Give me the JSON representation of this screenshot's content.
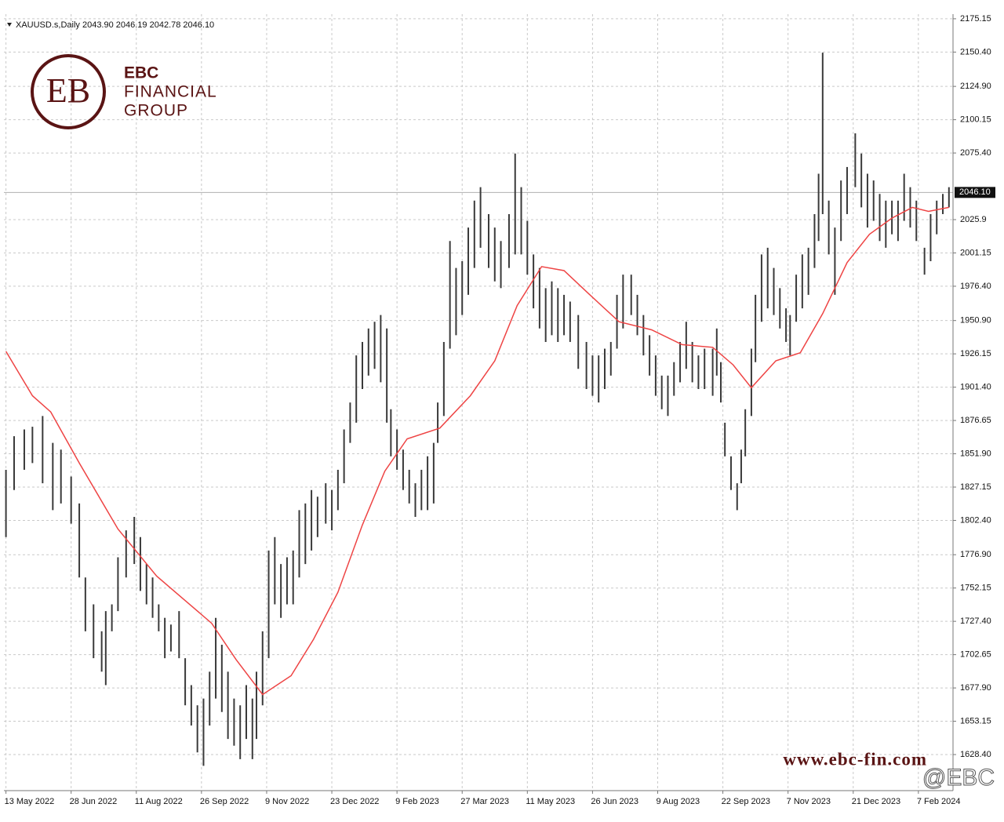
{
  "chart_data": {
    "type": "ohlc",
    "header": "XAUUSD.s,Daily  2043.90 2046.19 2042.78 2046.10",
    "x": [
      0,
      4,
      9,
      13,
      18,
      23,
      27,
      32,
      36,
      39,
      43,
      47,
      49,
      52,
      55,
      59,
      63,
      66,
      69,
      72,
      75,
      78,
      81,
      85,
      88,
      91,
      94,
      97,
      100,
      103,
      106,
      109,
      112,
      115,
      118,
      121,
      123,
      126,
      129,
      132,
      135,
      138,
      141,
      144,
      147,
      150,
      153,
      157,
      160,
      163,
      166,
      169,
      172,
      175,
      178,
      181,
      184,
      187,
      189,
      192,
      195,
      198,
      201,
      204,
      207,
      210,
      212,
      215,
      218,
      221,
      224,
      227,
      230,
      233,
      237,
      240,
      243,
      247,
      250,
      253,
      256,
      259,
      262,
      265,
      268,
      271,
      274,
      277,
      281,
      285,
      288,
      291,
      294,
      297,
      300,
      303,
      307,
      310,
      313,
      316,
      319,
      322,
      325,
      328,
      331,
      334,
      337,
      340,
      343,
      347,
      349,
      351,
      353,
      356,
      359,
      361,
      363,
      366,
      368,
      371,
      374,
      377,
      380,
      383,
      385,
      388,
      391,
      394,
      397,
      399,
      401,
      404,
      407,
      410,
      413,
      417,
      420,
      423,
      426,
      429,
      432,
      435,
      438,
      441,
      444,
      447,
      451,
      454,
      457,
      460,
      463
    ],
    "high": [
      1840,
      1865,
      1870,
      1872,
      1880,
      1860,
      1855,
      1835,
      1815,
      1760,
      1740,
      1720,
      1735,
      1740,
      1775,
      1795,
      1805,
      1790,
      1770,
      1760,
      1740,
      1730,
      1725,
      1735,
      1700,
      1680,
      1665,
      1670,
      1690,
      1730,
      1710,
      1690,
      1670,
      1665,
      1680,
      1670,
      1690,
      1720,
      1780,
      1790,
      1770,
      1775,
      1780,
      1810,
      1815,
      1825,
      1820,
      1830,
      1825,
      1840,
      1870,
      1890,
      1925,
      1935,
      1945,
      1950,
      1955,
      1945,
      1885,
      1870,
      1855,
      1840,
      1830,
      1840,
      1850,
      1860,
      1890,
      1935,
      2010,
      1990,
      1995,
      2020,
      2040,
      2050,
      2030,
      2020,
      2010,
      2030,
      2075,
      2050,
      2025,
      2000,
      1990,
      1975,
      1980,
      1975,
      1970,
      1965,
      1955,
      1935,
      1925,
      1925,
      1930,
      1935,
      1970,
      1985,
      1985,
      1970,
      1955,
      1940,
      1925,
      1910,
      1910,
      1920,
      1935,
      1950,
      1935,
      1925,
      1930,
      1930,
      1945,
      1920,
      1875,
      1850,
      1830,
      1855,
      1885,
      1930,
      1970,
      2000,
      2005,
      1990,
      1975,
      1960,
      1955,
      1985,
      2000,
      2005,
      2030,
      2060,
      2150,
      2040,
      2020,
      2055,
      2065,
      2090,
      2075,
      2060,
      2055,
      2045,
      2040,
      2040,
      2040,
      2060,
      2050,
      2040,
      2005,
      2030,
      2040,
      2045,
      2050
    ],
    "low": [
      1790,
      1825,
      1840,
      1845,
      1830,
      1810,
      1815,
      1800,
      1760,
      1720,
      1700,
      1690,
      1680,
      1720,
      1735,
      1760,
      1770,
      1750,
      1740,
      1730,
      1720,
      1700,
      1705,
      1700,
      1665,
      1650,
      1630,
      1620,
      1650,
      1670,
      1660,
      1640,
      1635,
      1625,
      1640,
      1625,
      1640,
      1665,
      1700,
      1740,
      1730,
      1740,
      1740,
      1760,
      1770,
      1780,
      1790,
      1800,
      1795,
      1810,
      1830,
      1860,
      1875,
      1900,
      1910,
      1915,
      1905,
      1875,
      1850,
      1840,
      1825,
      1815,
      1805,
      1810,
      1810,
      1815,
      1860,
      1880,
      1930,
      1940,
      1955,
      1970,
      1990,
      2005,
      1990,
      1980,
      1975,
      1990,
      2000,
      2000,
      1985,
      1960,
      1945,
      1935,
      1940,
      1935,
      1940,
      1935,
      1915,
      1900,
      1895,
      1890,
      1900,
      1910,
      1930,
      1945,
      1955,
      1940,
      1925,
      1910,
      1895,
      1885,
      1880,
      1895,
      1905,
      1915,
      1905,
      1900,
      1900,
      1895,
      1910,
      1890,
      1850,
      1825,
      1810,
      1830,
      1850,
      1880,
      1920,
      1950,
      1960,
      1955,
      1945,
      1935,
      1925,
      1950,
      1960,
      1970,
      1990,
      2010,
      2030,
      2000,
      1970,
      2010,
      2030,
      2050,
      2035,
      2020,
      2025,
      2010,
      2005,
      2015,
      2010,
      2025,
      2020,
      2010,
      1985,
      1995,
      2015,
      2030,
      2035
    ],
    "color": "#3a3a3a",
    "ma": {
      "color": "#ee4444",
      "x": [
        0,
        13,
        22,
        36,
        55,
        74,
        101,
        113,
        126,
        140,
        151,
        163,
        175,
        186,
        197,
        213,
        228,
        240,
        251,
        263,
        274,
        286,
        301,
        317,
        332,
        347,
        357,
        366,
        378,
        390,
        401,
        413,
        424,
        435,
        445,
        453,
        463
      ],
      "values": [
        1928,
        1895,
        1883,
        1845,
        1796,
        1761,
        1726,
        1699,
        1673,
        1687,
        1714,
        1749,
        1799,
        1839,
        1863,
        1871,
        1895,
        1921,
        1962,
        1991,
        1988,
        1971,
        1950,
        1944,
        1933,
        1931,
        1918,
        1901,
        1921,
        1927,
        1956,
        1994,
        2015,
        2027,
        2035,
        2032,
        2035
      ]
    },
    "last_price": {
      "value": 2046.1,
      "label": "2046.10"
    },
    "xlim": [
      -1,
      465
    ],
    "ylim": [
      1601.6,
      2178.6
    ],
    "xticks": [
      {
        "value": 0,
        "label": "13 May 2022"
      },
      {
        "value": 32,
        "label": "28 Jun 2022"
      },
      {
        "value": 64,
        "label": "11 Aug 2022"
      },
      {
        "value": 96,
        "label": "26 Sep 2022"
      },
      {
        "value": 128,
        "label": "9 Nov 2022"
      },
      {
        "value": 160,
        "label": "23 Dec 2022"
      },
      {
        "value": 192,
        "label": "9 Feb 2023"
      },
      {
        "value": 224,
        "label": "27 Mar 2023"
      },
      {
        "value": 256,
        "label": "11 May 2023"
      },
      {
        "value": 288,
        "label": "26 Jun 2023"
      },
      {
        "value": 320,
        "label": "9 Aug 2023"
      },
      {
        "value": 352,
        "label": "22 Sep 2023"
      },
      {
        "value": 384,
        "label": "7 Nov 2023"
      },
      {
        "value": 416,
        "label": "21 Dec 2023"
      },
      {
        "value": 448,
        "label": "7 Feb 2024"
      }
    ],
    "yticks": [
      2175.15,
      {
        "value": 2150.4,
        "label": "2150.40"
      },
      {
        "value": 2124.9,
        "label": "2124.90"
      },
      2100.15,
      {
        "value": 2075.4,
        "label": "2075.40"
      },
      2025.9,
      2001.15,
      {
        "value": 1976.4,
        "label": "1976.40"
      },
      {
        "value": 1950.9,
        "label": "1950.90"
      },
      1926.15,
      {
        "value": 1901.4,
        "label": "1901.40"
      },
      1876.65,
      {
        "value": 1851.9,
        "label": "1851.90"
      },
      1827.15,
      {
        "value": 1802.4,
        "label": "1802.40"
      },
      {
        "value": 1776.9,
        "label": "1776.90"
      },
      1752.15,
      {
        "value": 1727.4,
        "label": "1727.40"
      },
      1702.65,
      {
        "value": 1677.9,
        "label": "1677.90"
      },
      1653.15,
      {
        "value": 1628.4,
        "label": "1628.40"
      }
    ],
    "grid": true
  },
  "branding": {
    "logo_line1": "EBC",
    "logo_line2": "FINANCIAL",
    "logo_line3": "GROUP",
    "website": "www.ebc-fin.com",
    "watermark": "@EBC"
  }
}
